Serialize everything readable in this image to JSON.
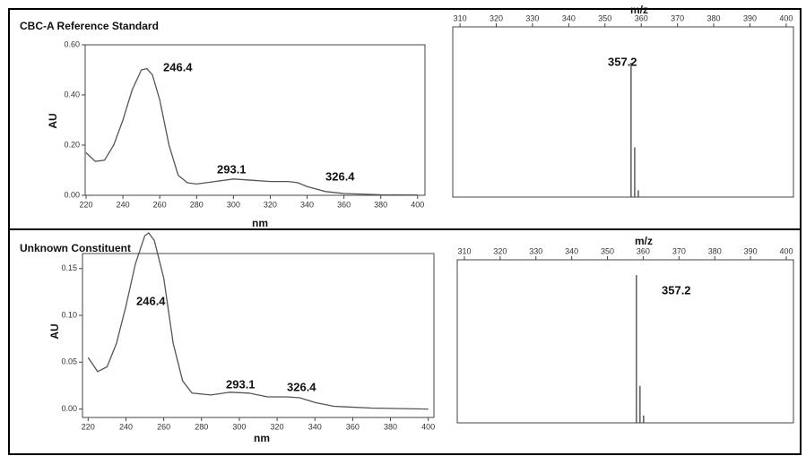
{
  "chart_data": [
    {
      "type": "line",
      "title": "CBC-A Reference Standard",
      "x_label": "nm",
      "y_label": "AU",
      "color": "#555555",
      "x": [
        220,
        225,
        230,
        235,
        240,
        245,
        250,
        253,
        256,
        260,
        265,
        270,
        275,
        280,
        290,
        300,
        310,
        320,
        330,
        335,
        340,
        350,
        360,
        380,
        400
      ],
      "values": [
        0.17,
        0.135,
        0.14,
        0.2,
        0.3,
        0.42,
        0.5,
        0.505,
        0.48,
        0.38,
        0.2,
        0.08,
        0.05,
        0.045,
        0.055,
        0.065,
        0.06,
        0.055,
        0.055,
        0.05,
        0.035,
        0.015,
        0.007,
        0.002,
        0.001
      ],
      "xlim": [
        219.5,
        404
      ],
      "ylim": [
        0,
        0.6
      ],
      "xticks": [
        220,
        240,
        260,
        280,
        300,
        320,
        340,
        360,
        380,
        400
      ],
      "yticks": [
        {
          "value": 0,
          "label": "0.00"
        },
        {
          "value": 0.2,
          "label": "0.20"
        },
        {
          "value": 0.4,
          "label": "0.40"
        },
        {
          "value": 0.6,
          "label": "0.60"
        }
      ],
      "annotations": [
        "246.4",
        "293.1",
        "326.4"
      ]
    },
    {
      "type": "stem",
      "x_label": "m/z",
      "color": "#333333",
      "x": [
        357.2,
        358.2,
        359.2
      ],
      "values": [
        100,
        37,
        5
      ],
      "xlim": [
        308,
        402
      ],
      "xticks": [
        310,
        320,
        330,
        340,
        350,
        360,
        370,
        380,
        390,
        400
      ],
      "annotations": [
        "357.2"
      ]
    },
    {
      "type": "line",
      "title": "Unknown Constituent",
      "x_label": "nm",
      "y_label": "AU",
      "color": "#555555",
      "x": [
        220,
        225,
        230,
        235,
        240,
        245,
        250,
        252,
        255,
        260,
        265,
        270,
        275,
        285,
        295,
        305,
        315,
        325,
        332,
        340,
        350,
        370,
        400
      ],
      "values": [
        0.055,
        0.04,
        0.045,
        0.07,
        0.11,
        0.155,
        0.185,
        0.188,
        0.18,
        0.14,
        0.07,
        0.03,
        0.017,
        0.015,
        0.018,
        0.017,
        0.013,
        0.013,
        0.012,
        0.007,
        0.003,
        0.001,
        0
      ],
      "xlim": [
        217,
        403
      ],
      "ylim": [
        -0.009,
        0.166
      ],
      "xticks": [
        220,
        240,
        260,
        280,
        300,
        320,
        340,
        360,
        380,
        400
      ],
      "yticks": [
        {
          "value": 0,
          "label": "0.00"
        },
        {
          "value": 0.05,
          "label": "0.05"
        },
        {
          "value": 0.1,
          "label": "0.10"
        },
        {
          "value": 0.15,
          "label": "0.15"
        }
      ],
      "annotations": [
        "246.4",
        "293.1",
        "326.4"
      ]
    },
    {
      "type": "stem",
      "x_label": "m/z",
      "color": "#333333",
      "x": [
        358.1,
        359.1,
        360.1
      ],
      "values": [
        100,
        25,
        5
      ],
      "xlim": [
        308,
        402
      ],
      "xticks": [
        310,
        320,
        330,
        340,
        350,
        360,
        370,
        380,
        390,
        400
      ],
      "annotations": [
        "357.2"
      ]
    }
  ]
}
